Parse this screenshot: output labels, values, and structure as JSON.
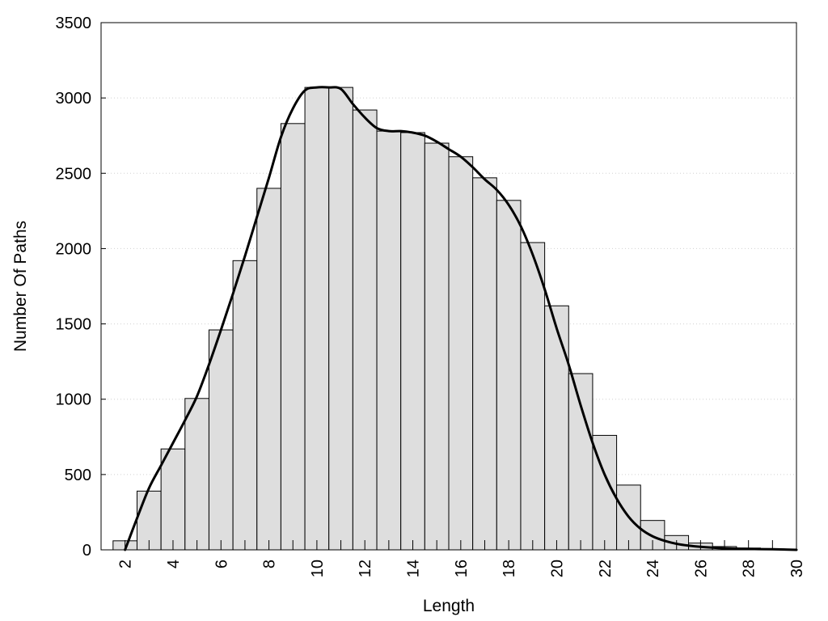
{
  "chart_data": {
    "type": "bar",
    "xlabel": "Length",
    "ylabel": "Number Of Paths",
    "xlim": [
      1,
      30
    ],
    "ylim": [
      0,
      3500
    ],
    "x_ticks": [
      "2",
      "4",
      "6",
      "8",
      "10",
      "12",
      "14",
      "16",
      "18",
      "20",
      "22",
      "24",
      "26",
      "28",
      "30"
    ],
    "y_ticks": [
      "0",
      "500",
      "1000",
      "1500",
      "2000",
      "2500",
      "3000",
      "3500"
    ],
    "grid": "horizontal dotted",
    "bar_color": "#dedede",
    "series": [
      {
        "type": "bar",
        "x": [
          2,
          3,
          4,
          5,
          6,
          7,
          8,
          9,
          10,
          11,
          12,
          13,
          14,
          15,
          16,
          17,
          18,
          19,
          20,
          21,
          22,
          23,
          24,
          25,
          26,
          27,
          28,
          29
        ],
        "values": [
          60,
          390,
          670,
          1005,
          1460,
          1920,
          2400,
          2830,
          3070,
          3070,
          2920,
          2780,
          2770,
          2700,
          2610,
          2470,
          2320,
          2040,
          1620,
          1170,
          760,
          430,
          195,
          95,
          45,
          22,
          12,
          6
        ]
      },
      {
        "type": "line",
        "x": [
          2,
          2.5,
          3,
          3.5,
          4,
          4.5,
          5,
          5.5,
          6,
          6.5,
          7,
          7.5,
          8,
          8.5,
          9,
          9.5,
          10,
          10.5,
          11,
          11.5,
          12,
          12.5,
          13,
          13.5,
          14,
          14.5,
          15,
          15.5,
          16,
          16.5,
          17,
          17.5,
          18,
          18.5,
          19,
          19.5,
          20,
          20.5,
          21,
          21.5,
          22,
          22.5,
          23,
          23.5,
          24,
          24.5,
          25,
          25.5,
          26,
          27,
          28,
          29,
          30
        ],
        "values": [
          0,
          210,
          410,
          560,
          710,
          860,
          1020,
          1230,
          1460,
          1700,
          1950,
          2210,
          2470,
          2740,
          2930,
          3050,
          3070,
          3070,
          3060,
          2960,
          2870,
          2800,
          2780,
          2780,
          2770,
          2750,
          2710,
          2660,
          2610,
          2540,
          2460,
          2390,
          2290,
          2150,
          1960,
          1730,
          1470,
          1230,
          960,
          710,
          500,
          340,
          220,
          140,
          90,
          60,
          40,
          28,
          20,
          10,
          6,
          4,
          0
        ]
      }
    ]
  }
}
